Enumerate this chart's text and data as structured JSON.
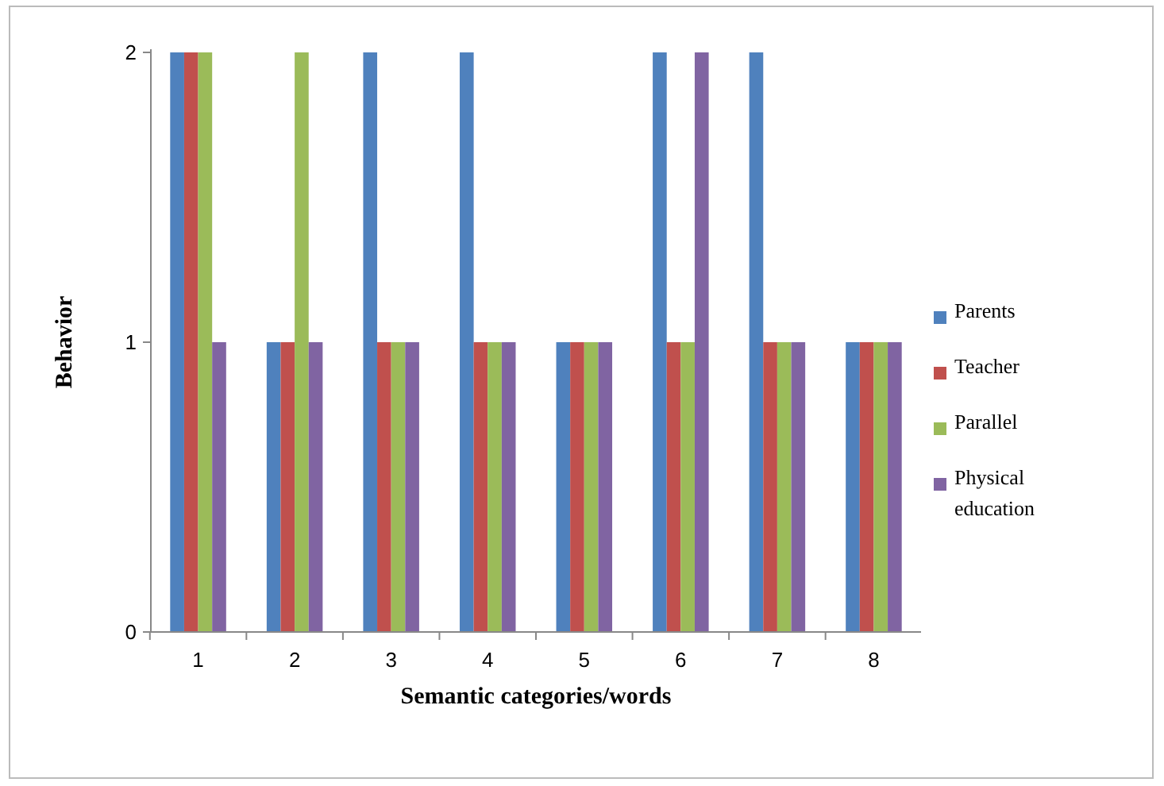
{
  "chart_data": {
    "type": "bar",
    "xlabel": "Semantic categories/words",
    "ylabel": "Behavior",
    "categories": [
      "1",
      "2",
      "3",
      "4",
      "5",
      "6",
      "7",
      "8"
    ],
    "ylim": [
      0,
      2
    ],
    "yticks": [
      0,
      1,
      2
    ],
    "grid": false,
    "legend": "right",
    "series": [
      {
        "name": "Parents",
        "color": "#4f81bd",
        "values": [
          2,
          1,
          2,
          2,
          1,
          2,
          2,
          1
        ]
      },
      {
        "name": "Teacher",
        "color": "#c0504d",
        "values": [
          2,
          1,
          1,
          1,
          1,
          1,
          1,
          1
        ]
      },
      {
        "name": "Parallel",
        "color": "#9bbb59",
        "values": [
          2,
          2,
          1,
          1,
          1,
          1,
          1,
          1
        ]
      },
      {
        "name": "Physical education",
        "color": "#8064a2",
        "values": [
          1,
          1,
          1,
          1,
          1,
          2,
          1,
          1
        ]
      }
    ]
  }
}
